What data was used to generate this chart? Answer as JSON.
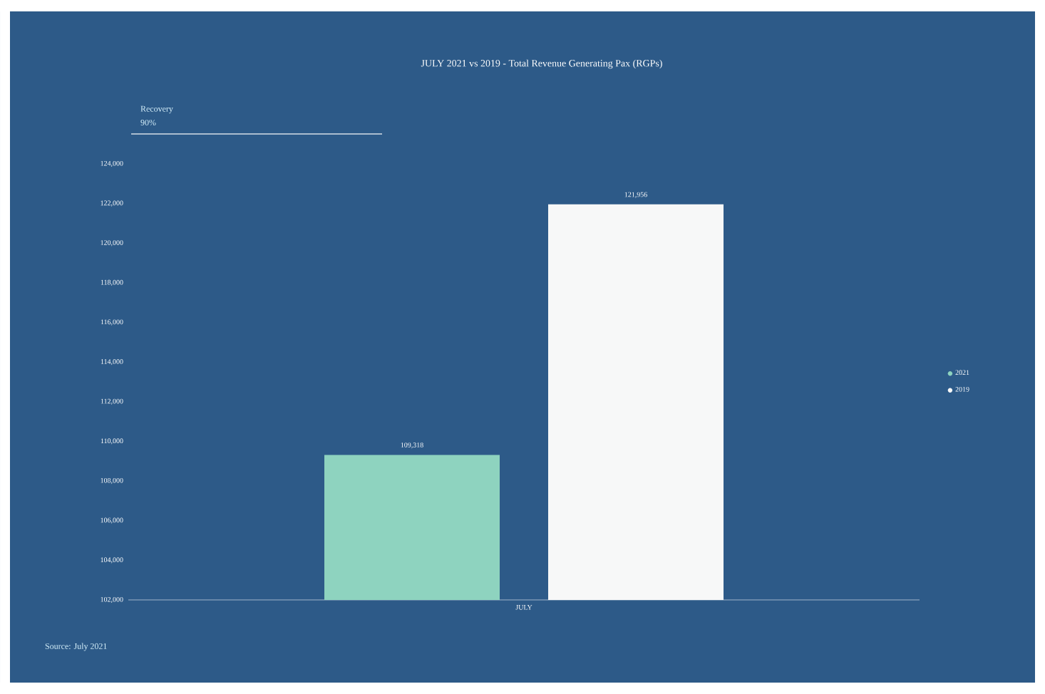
{
  "chart_data": {
    "type": "bar",
    "title": "JULY 2021 vs 2019 - Total Revenue Generating Pax (RGPs)",
    "categories": [
      "JULY"
    ],
    "series": [
      {
        "name": "2021",
        "color": "#8ed3bf",
        "values": [
          109318
        ],
        "value_labels": [
          "109,318"
        ]
      },
      {
        "name": "2019",
        "color": "#f7f8f8",
        "values": [
          121956
        ],
        "value_labels": [
          "121,956"
        ]
      }
    ],
    "ylim": [
      102000,
      124000
    ],
    "yticks": [
      {
        "value": 102000,
        "label": "102,000"
      },
      {
        "value": 104000,
        "label": "104,000"
      },
      {
        "value": 106000,
        "label": "106,000"
      },
      {
        "value": 108000,
        "label": "108,000"
      },
      {
        "value": 110000,
        "label": "110,000"
      },
      {
        "value": 112000,
        "label": "112,000"
      },
      {
        "value": 114000,
        "label": "114,000"
      },
      {
        "value": 116000,
        "label": "116,000"
      },
      {
        "value": 118000,
        "label": "118,000"
      },
      {
        "value": 120000,
        "label": "120,000"
      },
      {
        "value": 122000,
        "label": "122,000"
      },
      {
        "value": 124000,
        "label": "124,000"
      }
    ],
    "annotations": [
      "Recovery",
      "90%",
      "Source: July 2021"
    ],
    "grid": false,
    "legend": "right",
    "marker": "circle"
  }
}
